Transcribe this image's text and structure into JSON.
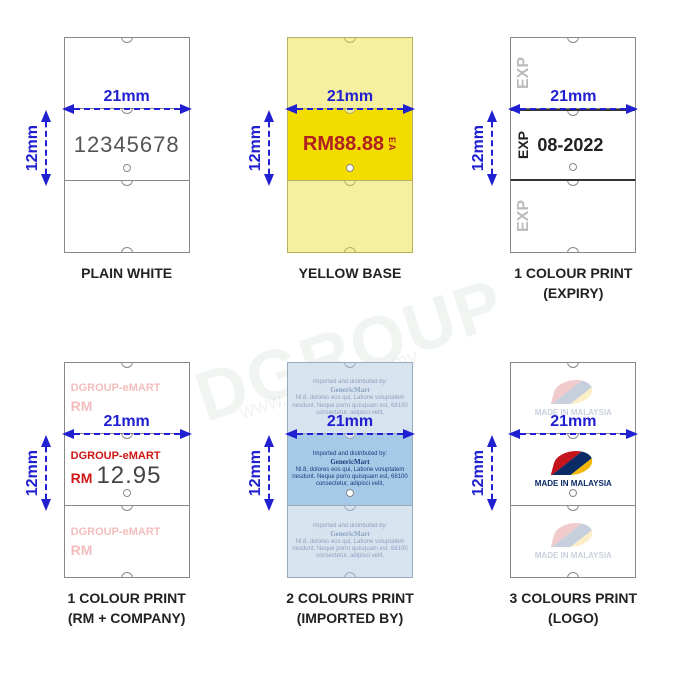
{
  "dimensions": {
    "width_label": "21mm",
    "height_label": "12mm"
  },
  "arrow_color": "#2020d0",
  "labels": {
    "plain": {
      "caption": "PLAIN WHITE",
      "sample_text": "12345678",
      "text_color": "#555555",
      "bg": "#ffffff"
    },
    "yellow": {
      "caption": "YELLOW BASE",
      "sample_text": "RM88.88",
      "suffix": "EA",
      "bg_outer": "#f4f0a0",
      "bg_mid": "#f3dc00",
      "text_color": "#b02020"
    },
    "expiry": {
      "caption_line1": "1 COLOUR PRINT",
      "caption_line2": "(EXPIRY)",
      "prefix": "EXP",
      "date": "08-2022",
      "ghost_color": "#bbbbbb"
    },
    "rmco": {
      "caption_line1": "1 COLOUR PRINT",
      "caption_line2": "(RM + COMPANY)",
      "company": "DGROUP-eMART",
      "currency": "RM",
      "price": "12.95",
      "accent_color": "#d01515",
      "ghost_color": "#f3bdbd"
    },
    "import": {
      "caption_line1": "2 COLOURS PRINT",
      "caption_line2": "(IMPORTED BY)",
      "heading": "Imported and distributed by:",
      "company": "GenericMart",
      "address": "Nl.8, dolores eos qui, Latione voluptatem nesdunt. Neque porro quisquam est, 68100 consectetur, adipisci velit,",
      "bg_outer": "#d7e4ef",
      "bg_mid": "#a7c9e8",
      "text_color": "#1a3a7a"
    },
    "logo": {
      "caption_line1": "3 COLOURS PRINT",
      "caption_line2": "(LOGO)",
      "text": "MADE IN MALAYSIA",
      "flag_colors": {
        "red": "#c4151c",
        "blue": "#0a2a66",
        "yellow": "#f2b705"
      }
    }
  },
  "watermark": {
    "main": "DGROUP",
    "url": "www.dgroup.com.my"
  }
}
